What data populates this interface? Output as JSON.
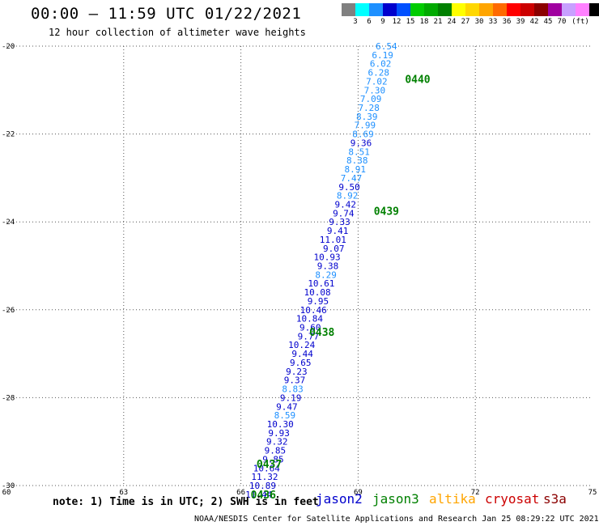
{
  "header": {
    "title": "00:00 – 11:59 UTC 01/22/2021",
    "subtitle": "12 hour collection of altimeter wave heights"
  },
  "legend": {
    "colors": [
      "#808080",
      "#00ffff",
      "#1e90ff",
      "#0000cd",
      "#0050ff",
      "#00cc00",
      "#00aa00",
      "#008000",
      "#ffff00",
      "#ffd700",
      "#ffa500",
      "#ff6a00",
      "#ff0000",
      "#cc0000",
      "#8b0000",
      "#a000a0",
      "#c8a0ff",
      "#ff80ff",
      "#000000"
    ],
    "labels": [
      "3",
      "6",
      "9",
      "12",
      "15",
      "18",
      "21",
      "24",
      "27",
      "30",
      "33",
      "36",
      "39",
      "42",
      "45",
      "70",
      "(ft)"
    ]
  },
  "note": "note: 1) Time is in UTC; 2) SWH is in feet",
  "satellites": [
    {
      "name": "jason2",
      "color": "#0000cd"
    },
    {
      "name": "jason3",
      "color": "#008000"
    },
    {
      "name": "altika",
      "color": "#ffa500"
    },
    {
      "name": "cryosat",
      "color": "#cc0000"
    },
    {
      "name": "s3a",
      "color": "#8b0000"
    }
  ],
  "footer": "NOAA/NESDIS Center for Satellite Applications and Research    Jan 25 08:29:22 UTC 2021",
  "chart_data": {
    "type": "scatter",
    "xlim": [
      60,
      75
    ],
    "ylim": [
      -30,
      -20
    ],
    "x_ticks": [
      "60",
      "63",
      "66",
      "69",
      "72",
      "75"
    ],
    "y_ticks": [
      "-20",
      "-22",
      "-24",
      "-26",
      "-28",
      "-30"
    ],
    "grid": true,
    "colors": {
      "light": "#1e90ff",
      "dark": "#0000cd",
      "time": "#008000"
    },
    "points": [
      {
        "x": 70.0,
        "y": -20.0,
        "v": "6.54",
        "c": "light"
      },
      {
        "x": 69.9,
        "y": -20.2,
        "v": "6.19",
        "c": "light"
      },
      {
        "x": 69.85,
        "y": -20.4,
        "v": "6.02",
        "c": "light"
      },
      {
        "x": 69.8,
        "y": -20.6,
        "v": "6.28",
        "c": "light"
      },
      {
        "x": 69.75,
        "y": -20.8,
        "v": "7.02",
        "c": "light"
      },
      {
        "x": 69.7,
        "y": -21.0,
        "v": "7.30",
        "c": "light"
      },
      {
        "x": 69.6,
        "y": -21.2,
        "v": "7.09",
        "c": "light"
      },
      {
        "x": 69.55,
        "y": -21.4,
        "v": "7.28",
        "c": "light"
      },
      {
        "x": 69.5,
        "y": -21.6,
        "v": "8.39",
        "c": "light"
      },
      {
        "x": 69.45,
        "y": -21.8,
        "v": "7.99",
        "c": "light"
      },
      {
        "x": 69.4,
        "y": -22.0,
        "v": "8.69",
        "c": "light"
      },
      {
        "x": 69.35,
        "y": -22.2,
        "v": "9.36",
        "c": "dark"
      },
      {
        "x": 69.3,
        "y": -22.4,
        "v": "8.51",
        "c": "light"
      },
      {
        "x": 69.25,
        "y": -22.6,
        "v": "8.38",
        "c": "light"
      },
      {
        "x": 69.2,
        "y": -22.8,
        "v": "8.91",
        "c": "light"
      },
      {
        "x": 69.1,
        "y": -23.0,
        "v": "7.47",
        "c": "light"
      },
      {
        "x": 69.05,
        "y": -23.2,
        "v": "9.50",
        "c": "dark"
      },
      {
        "x": 69.0,
        "y": -23.4,
        "v": "8.92",
        "c": "light"
      },
      {
        "x": 68.95,
        "y": -23.6,
        "v": "9.42",
        "c": "dark"
      },
      {
        "x": 68.9,
        "y": -23.8,
        "v": "9.74",
        "c": "dark"
      },
      {
        "x": 68.8,
        "y": -24.0,
        "v": "9.33",
        "c": "dark"
      },
      {
        "x": 68.75,
        "y": -24.2,
        "v": "9.41",
        "c": "dark"
      },
      {
        "x": 68.7,
        "y": -24.4,
        "v": "11.01",
        "c": "dark"
      },
      {
        "x": 68.65,
        "y": -24.6,
        "v": "9.07",
        "c": "dark"
      },
      {
        "x": 68.55,
        "y": -24.8,
        "v": "10.93",
        "c": "dark"
      },
      {
        "x": 68.5,
        "y": -25.0,
        "v": "9.38",
        "c": "dark"
      },
      {
        "x": 68.45,
        "y": -25.2,
        "v": "8.29",
        "c": "light"
      },
      {
        "x": 68.4,
        "y": -25.4,
        "v": "10.61",
        "c": "dark"
      },
      {
        "x": 68.3,
        "y": -25.6,
        "v": "10.08",
        "c": "dark"
      },
      {
        "x": 68.25,
        "y": -25.8,
        "v": "9.95",
        "c": "dark"
      },
      {
        "x": 68.2,
        "y": -26.0,
        "v": "10.46",
        "c": "dark"
      },
      {
        "x": 68.1,
        "y": -26.2,
        "v": "10.84",
        "c": "dark"
      },
      {
        "x": 68.05,
        "y": -26.4,
        "v": "9.60",
        "c": "dark"
      },
      {
        "x": 68.0,
        "y": -26.6,
        "v": "9.77",
        "c": "dark"
      },
      {
        "x": 67.9,
        "y": -26.8,
        "v": "10.24",
        "c": "dark"
      },
      {
        "x": 67.85,
        "y": -27.0,
        "v": "9.44",
        "c": "dark"
      },
      {
        "x": 67.8,
        "y": -27.2,
        "v": "9.65",
        "c": "dark"
      },
      {
        "x": 67.7,
        "y": -27.4,
        "v": "9.23",
        "c": "dark"
      },
      {
        "x": 67.65,
        "y": -27.6,
        "v": "9.37",
        "c": "dark"
      },
      {
        "x": 67.6,
        "y": -27.8,
        "v": "8.83",
        "c": "light"
      },
      {
        "x": 67.55,
        "y": -28.0,
        "v": "9.19",
        "c": "dark"
      },
      {
        "x": 67.45,
        "y": -28.2,
        "v": "9.47",
        "c": "dark"
      },
      {
        "x": 67.4,
        "y": -28.4,
        "v": "8.59",
        "c": "light"
      },
      {
        "x": 67.35,
        "y": -28.6,
        "v": "10.30",
        "c": "dark"
      },
      {
        "x": 67.25,
        "y": -28.8,
        "v": "9.93",
        "c": "dark"
      },
      {
        "x": 67.2,
        "y": -29.0,
        "v": "9.32",
        "c": "dark"
      },
      {
        "x": 67.15,
        "y": -29.2,
        "v": "9.85",
        "c": "dark"
      },
      {
        "x": 67.1,
        "y": -29.4,
        "v": "9.85",
        "c": "dark"
      },
      {
        "x": 67.0,
        "y": -29.6,
        "v": "10.64",
        "c": "dark"
      },
      {
        "x": 66.95,
        "y": -29.8,
        "v": "11.32",
        "c": "dark"
      },
      {
        "x": 66.9,
        "y": -30.0,
        "v": "10.89",
        "c": "dark"
      },
      {
        "x": 66.8,
        "y": -30.2,
        "v": "11.44",
        "c": "dark"
      }
    ],
    "time_labels": [
      {
        "x": 70.2,
        "y": -20.75,
        "label": "0440"
      },
      {
        "x": 69.4,
        "y": -23.75,
        "label": "0439"
      },
      {
        "x": 67.75,
        "y": -26.5,
        "label": "0438"
      },
      {
        "x": 66.4,
        "y": -29.5,
        "label": "0437"
      },
      {
        "x": 66.25,
        "y": -30.2,
        "label": "0436"
      }
    ]
  }
}
